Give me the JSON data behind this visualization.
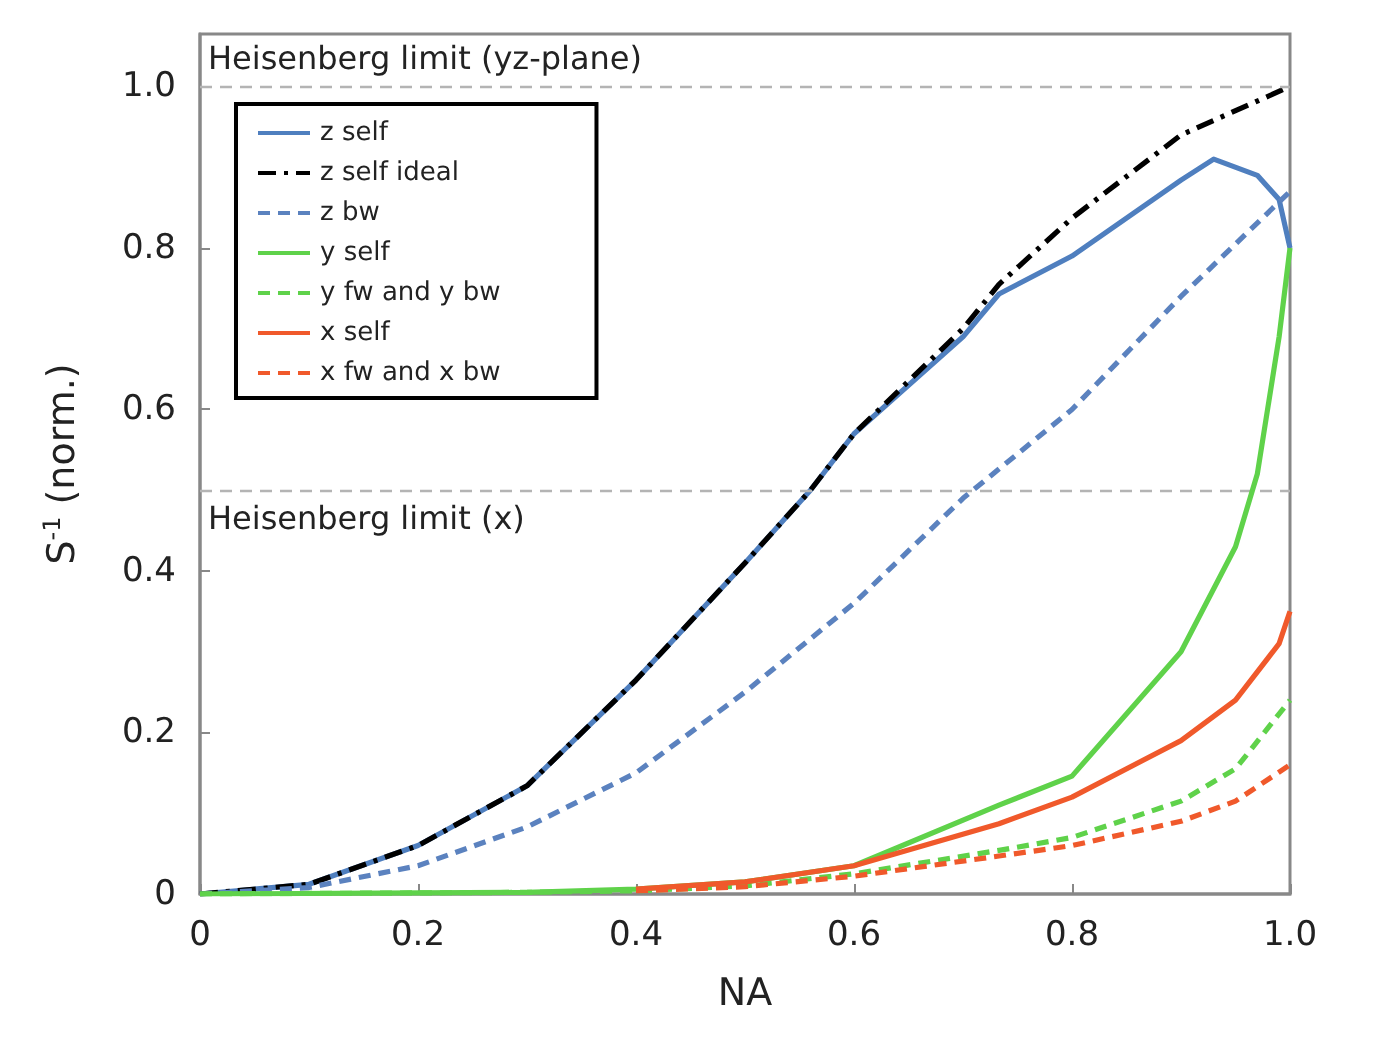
{
  "chart_data": {
    "type": "line",
    "xlabel": "NA",
    "ylabel": "S$^{-1}$ (norm.)",
    "xlim": [
      0,
      1
    ],
    "ylim": [
      0,
      1.065
    ],
    "xticks": [
      0,
      0.2,
      0.4,
      0.6,
      0.8,
      {
        "value": 1,
        "label": "1.0"
      }
    ],
    "yticks": [
      0,
      0.2,
      0.4,
      0.6,
      0.8,
      {
        "value": 1,
        "label": "1.0"
      }
    ],
    "grid": false,
    "legend": "top left",
    "marker": "none",
    "ref_lines": [
      {
        "axis": "y",
        "value": 1,
        "label": "Heisenberg limit (yz-plane)",
        "color": "#b4b4b4",
        "line_style": "dashed"
      },
      {
        "axis": "y",
        "value": 0.5,
        "label": "Heisenberg limit (x)",
        "color": "#b4b4b4",
        "line_style": "dashed"
      }
    ],
    "series": [
      {
        "name": "z self",
        "color": "#4f7fbf",
        "line_style": "solid",
        "x": [
          0,
          0.1,
          0.2,
          0.3,
          0.4,
          0.5,
          0.56,
          0.6,
          0.7,
          0.733,
          0.8,
          0.9,
          0.93,
          0.97,
          0.99,
          1
        ],
        "values": [
          0,
          0.012,
          0.06,
          0.134,
          0.265,
          0.41,
          0.5,
          0.57,
          0.69,
          0.743,
          0.79,
          0.884,
          0.91,
          0.89,
          0.86,
          0.8
        ]
      },
      {
        "name": "z self ideal",
        "color": "#000000",
        "line_style": "dashdot",
        "x": [
          0,
          0.1,
          0.2,
          0.3,
          0.4,
          0.5,
          0.56,
          0.6,
          0.7,
          0.733,
          0.8,
          0.9,
          1
        ],
        "values": [
          0,
          0.012,
          0.06,
          0.134,
          0.265,
          0.41,
          0.5,
          0.57,
          0.7,
          0.755,
          0.837,
          0.94,
          1
        ]
      },
      {
        "name": "z bw",
        "color": "#5b82bf",
        "line_style": "dashed",
        "x": [
          0,
          0.1,
          0.2,
          0.3,
          0.4,
          0.5,
          0.6,
          0.7,
          0.8,
          0.9,
          1
        ],
        "values": [
          0,
          0.008,
          0.035,
          0.083,
          0.15,
          0.25,
          0.36,
          0.49,
          0.6,
          0.74,
          0.87
        ]
      },
      {
        "name": "y self",
        "color": "#5fd24a",
        "line_style": "solid",
        "x": [
          0,
          0.3,
          0.4,
          0.5,
          0.6,
          0.733,
          0.8,
          0.9,
          0.95,
          0.97,
          0.99,
          1
        ],
        "values": [
          0,
          0.002,
          0.006,
          0.015,
          0.035,
          0.11,
          0.146,
          0.3,
          0.43,
          0.52,
          0.69,
          0.8
        ]
      },
      {
        "name": "y fw and y bw",
        "color": "#5fd24a",
        "line_style": "dashed",
        "x": [
          0,
          0.3,
          0.4,
          0.5,
          0.6,
          0.733,
          0.8,
          0.9,
          0.95,
          1
        ],
        "values": [
          0,
          0.002,
          0.004,
          0.01,
          0.025,
          0.054,
          0.07,
          0.115,
          0.155,
          0.24
        ]
      },
      {
        "name": "x self",
        "color": "#f0592b",
        "line_style": "solid",
        "x": [
          0.4,
          0.5,
          0.6,
          0.733,
          0.8,
          0.9,
          0.95,
          0.99,
          1
        ],
        "values": [
          0.006,
          0.015,
          0.035,
          0.087,
          0.12,
          0.19,
          0.24,
          0.31,
          0.35
        ]
      },
      {
        "name": "x fw and x bw",
        "color": "#f0592b",
        "line_style": "dashed",
        "x": [
          0.4,
          0.5,
          0.6,
          0.733,
          0.8,
          0.9,
          0.95,
          1
        ],
        "values": [
          0.004,
          0.009,
          0.022,
          0.047,
          0.06,
          0.09,
          0.115,
          0.16
        ]
      }
    ]
  }
}
